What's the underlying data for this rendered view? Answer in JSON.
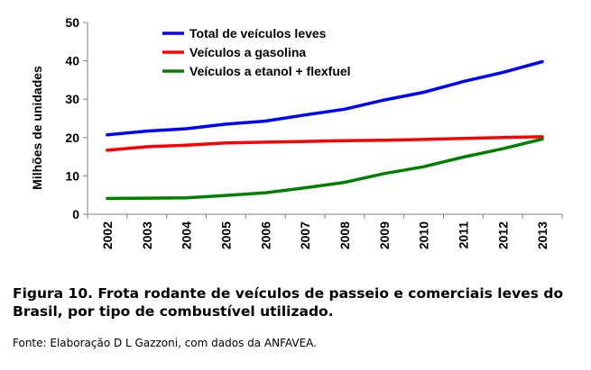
{
  "chart_data": {
    "type": "line",
    "title": "",
    "xlabel": "",
    "ylabel": "Milhões de unidades",
    "ylim": [
      0,
      50
    ],
    "yticks": [
      0,
      10,
      20,
      30,
      40,
      50
    ],
    "x": [
      "2002",
      "2003",
      "2004",
      "2005",
      "2006",
      "2007",
      "2008",
      "2009",
      "2010",
      "2011",
      "2012",
      "2013"
    ],
    "legend_position": "top-center",
    "grid": false,
    "series": [
      {
        "name": "Total de veículos leves",
        "color": "#0000ff",
        "values": [
          20.7,
          21.7,
          22.3,
          23.5,
          24.3,
          25.9,
          27.4,
          29.8,
          31.8,
          34.6,
          37.0,
          39.8
        ]
      },
      {
        "name": "Veículos a gasolina",
        "color": "#ff0000",
        "values": [
          16.7,
          17.6,
          18.0,
          18.6,
          18.8,
          19.0,
          19.2,
          19.3,
          19.5,
          19.8,
          20.0,
          20.2
        ]
      },
      {
        "name": "Veículos a etanol + flexfuel",
        "color": "#008000",
        "values": [
          4.1,
          4.2,
          4.3,
          4.9,
          5.6,
          6.9,
          8.3,
          10.6,
          12.4,
          14.9,
          17.1,
          19.6
        ]
      }
    ]
  },
  "caption": "Figura 10. Frota rodante de veículos de passeio e comerciais leves do Brasil, por tipo de combustível utilizado.",
  "source": "Fonte: Elaboração D L Gazzoni, com dados da ANFAVEA."
}
